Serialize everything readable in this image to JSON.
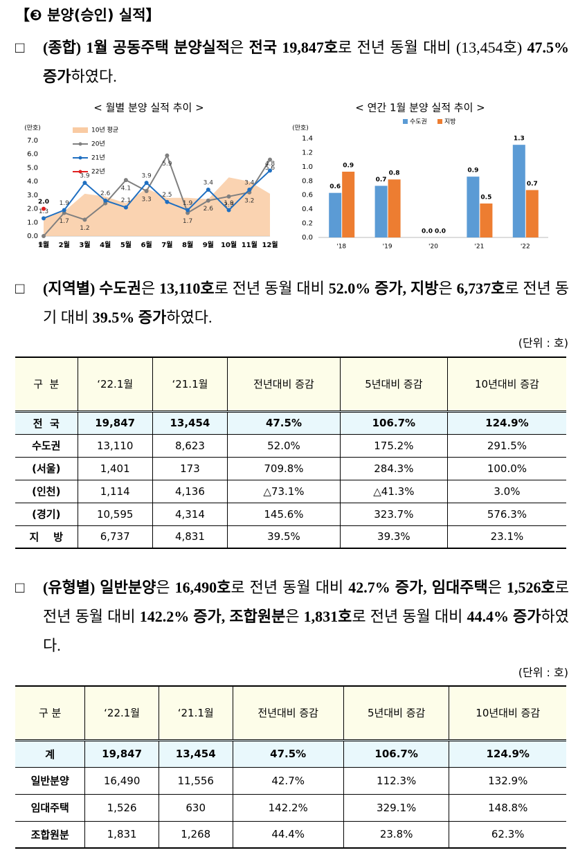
{
  "heading": "【❸ 분양(승인) 실적】",
  "paragraphs": [
    {
      "bullet": "□",
      "runs": [
        {
          "text": "(종합) 1월 공동주택 분양실적",
          "bold": true
        },
        {
          "text": "은 ",
          "bold": false
        },
        {
          "text": "전국 19,847호",
          "bold": true
        },
        {
          "text": "로 전년 동월 대비 (13,454호) ",
          "bold": false
        },
        {
          "text": "47.5% 증가",
          "bold": true
        },
        {
          "text": "하였다.",
          "bold": false
        }
      ]
    },
    {
      "bullet": "□",
      "runs": [
        {
          "text": "(지역별) 수도권",
          "bold": true
        },
        {
          "text": "은 ",
          "bold": false
        },
        {
          "text": "13,110호",
          "bold": true
        },
        {
          "text": "로 전년 동월 대비 ",
          "bold": false
        },
        {
          "text": "52.0% 증가, 지방",
          "bold": true
        },
        {
          "text": "은 ",
          "bold": false
        },
        {
          "text": "6,737호",
          "bold": true
        },
        {
          "text": "로 전년 동기 대비 ",
          "bold": false
        },
        {
          "text": "39.5% 증가",
          "bold": true
        },
        {
          "text": "하였다.",
          "bold": false
        }
      ]
    },
    {
      "bullet": "□",
      "runs": [
        {
          "text": "(유형별) 일반분양",
          "bold": true
        },
        {
          "text": "은 ",
          "bold": false
        },
        {
          "text": "16,490호",
          "bold": true
        },
        {
          "text": "로 전년 동월 대비 ",
          "bold": false
        },
        {
          "text": "42.7% 증가, 임대주택",
          "bold": true
        },
        {
          "text": "은 ",
          "bold": false
        },
        {
          "text": "1,526호",
          "bold": true
        },
        {
          "text": "로 전년 동월 대비 ",
          "bold": false
        },
        {
          "text": "142.2% 증가, 조합원분",
          "bold": true
        },
        {
          "text": "은 ",
          "bold": false
        },
        {
          "text": "1,831호",
          "bold": true
        },
        {
          "text": "로 전년 동월 대비 ",
          "bold": false
        },
        {
          "text": "44.4% 증가",
          "bold": true
        },
        {
          "text": "하였다.",
          "bold": false
        }
      ]
    }
  ],
  "chart_data": [
    {
      "type": "line",
      "title": "< 월별 분양 실적 추이 >",
      "y_unit": "(만호)",
      "categories": [
        "1월",
        "2월",
        "3월",
        "4월",
        "5월",
        "6월",
        "7월",
        "8월",
        "9월",
        "10월",
        "11월",
        "12월"
      ],
      "series": [
        {
          "name": "10년 평균",
          "color": "#f9cba3",
          "style": "area",
          "values": [
            1.4,
            1.8,
            3.1,
            2.9,
            2.4,
            3.5,
            2.8,
            2.8,
            2.7,
            4.3,
            4.0,
            3.1
          ]
        },
        {
          "name": "20년",
          "color": "#7f7f7f",
          "style": "line",
          "values": [
            0,
            1.7,
            1.2,
            2.4,
            4.1,
            3.3,
            5.9,
            1.7,
            2.6,
            2.9,
            3.2,
            5.6
          ],
          "value_labels": [
            "0.0",
            "1.7",
            "1.2",
            null,
            "4.1",
            "3.3",
            "5.9",
            "1.7",
            "2.6",
            "2.9",
            "3.2",
            "5.6"
          ]
        },
        {
          "name": "21년",
          "color": "#1f6fc1",
          "style": "line",
          "values": [
            1.3,
            1.9,
            3.9,
            2.6,
            2.1,
            3.9,
            2.5,
            1.9,
            3.4,
            1.9,
            3.4,
            4.8
          ],
          "value_labels": [
            "1.3",
            "1.9",
            "3.9",
            "2.6",
            "2.1",
            "3.9",
            "2.5",
            "1.9",
            "3.4",
            "1.9",
            "3.4",
            "4.8"
          ]
        },
        {
          "name": "22년",
          "color": "#e02020",
          "style": "line",
          "values": [
            2.0,
            null,
            null,
            null,
            null,
            null,
            null,
            null,
            null,
            null,
            null,
            null
          ],
          "value_labels": [
            "2.0",
            null,
            null,
            null,
            null,
            null,
            null,
            null,
            null,
            null,
            null,
            null
          ]
        }
      ],
      "ylim": [
        0,
        7
      ],
      "yticks": [
        {
          "value": 0,
          "label": "0.0"
        },
        {
          "value": 1,
          "label": "1.0"
        },
        {
          "value": 2,
          "label": "2.0"
        },
        {
          "value": 3,
          "label": "3.0"
        },
        {
          "value": 4,
          "label": "4.0"
        },
        {
          "value": 5,
          "label": "5.0"
        },
        {
          "value": 6,
          "label": "6.0"
        },
        {
          "value": 7,
          "label": "7.0"
        }
      ],
      "grid": false
    },
    {
      "type": "bar",
      "title": "< 연간 1월 분양 실적 추이 >",
      "y_unit": "(만호)",
      "categories": [
        "'18",
        "'19",
        "'20",
        "'21",
        "'22"
      ],
      "series": [
        {
          "name": "수도권",
          "color": "#5b9bd5",
          "values": [
            0.63,
            0.73,
            0,
            0.86,
            1.31
          ],
          "value_labels": [
            "0.6",
            "0.7",
            "0.0",
            "0.9",
            "1.3"
          ]
        },
        {
          "name": "지방",
          "color": "#ed7d31",
          "values": [
            0.93,
            0.82,
            0,
            0.48,
            0.67
          ],
          "value_labels": [
            "0.9",
            "0.8",
            "0.0",
            "0.5",
            "0.7"
          ]
        }
      ],
      "ylim": [
        0,
        1.4
      ],
      "yticks": [
        {
          "value": 0,
          "label": "0.0"
        },
        {
          "value": 0.2,
          "label": "0.2"
        },
        {
          "value": 0.4,
          "label": "0.4"
        },
        {
          "value": 0.6,
          "label": "0.6"
        },
        {
          "value": 0.8,
          "label": "0.8"
        },
        {
          "value": 1,
          "label": "1.0"
        },
        {
          "value": 1.2,
          "label": "1.2"
        },
        {
          "value": 1.4,
          "label": "1.4"
        }
      ],
      "grid": false
    }
  ],
  "tables": [
    {
      "unit": "(단위 : 호)",
      "header": [
        "구  분",
        "‘22.1월",
        "‘21.1월",
        "전년대비 증감",
        "5년대비 증감",
        "10년대비 증감"
      ],
      "rows": [
        [
          "전  국",
          "19,847",
          "13,454",
          "47.5%",
          "106.7%",
          "124.9%"
        ],
        [
          "수도권",
          "13,110",
          "8,623",
          "52.0%",
          "175.2%",
          "291.5%"
        ],
        [
          "(서울)",
          "1,401",
          "173",
          "709.8%",
          "284.3%",
          "100.0%"
        ],
        [
          "(인천)",
          "1,114",
          "4,136",
          "△73.1%",
          "△41.3%",
          "3.0%"
        ],
        [
          "(경기)",
          "10,595",
          "4,314",
          "145.6%",
          "323.7%",
          "576.3%"
        ],
        [
          "지    방",
          "6,737",
          "4,831",
          "39.5%",
          "39.3%",
          "23.1%"
        ]
      ]
    },
    {
      "unit": "(단위 : 호)",
      "header": [
        "구 분",
        "‘22.1월",
        "‘21.1월",
        "전년대비 증감",
        "5년대비 증감",
        "10년대비 증감"
      ],
      "rows": [
        [
          "계",
          "19,847",
          "13,454",
          "47.5%",
          "106.7%",
          "124.9%"
        ],
        [
          "일반분양",
          "16,490",
          "11,556",
          "42.7%",
          "112.3%",
          "132.9%"
        ],
        [
          "임대주택",
          "1,526",
          "630",
          "142.2%",
          "329.1%",
          "148.8%"
        ],
        [
          "조합원분",
          "1,831",
          "1,268",
          "44.4%",
          "23.8%",
          "62.3%"
        ]
      ]
    }
  ]
}
